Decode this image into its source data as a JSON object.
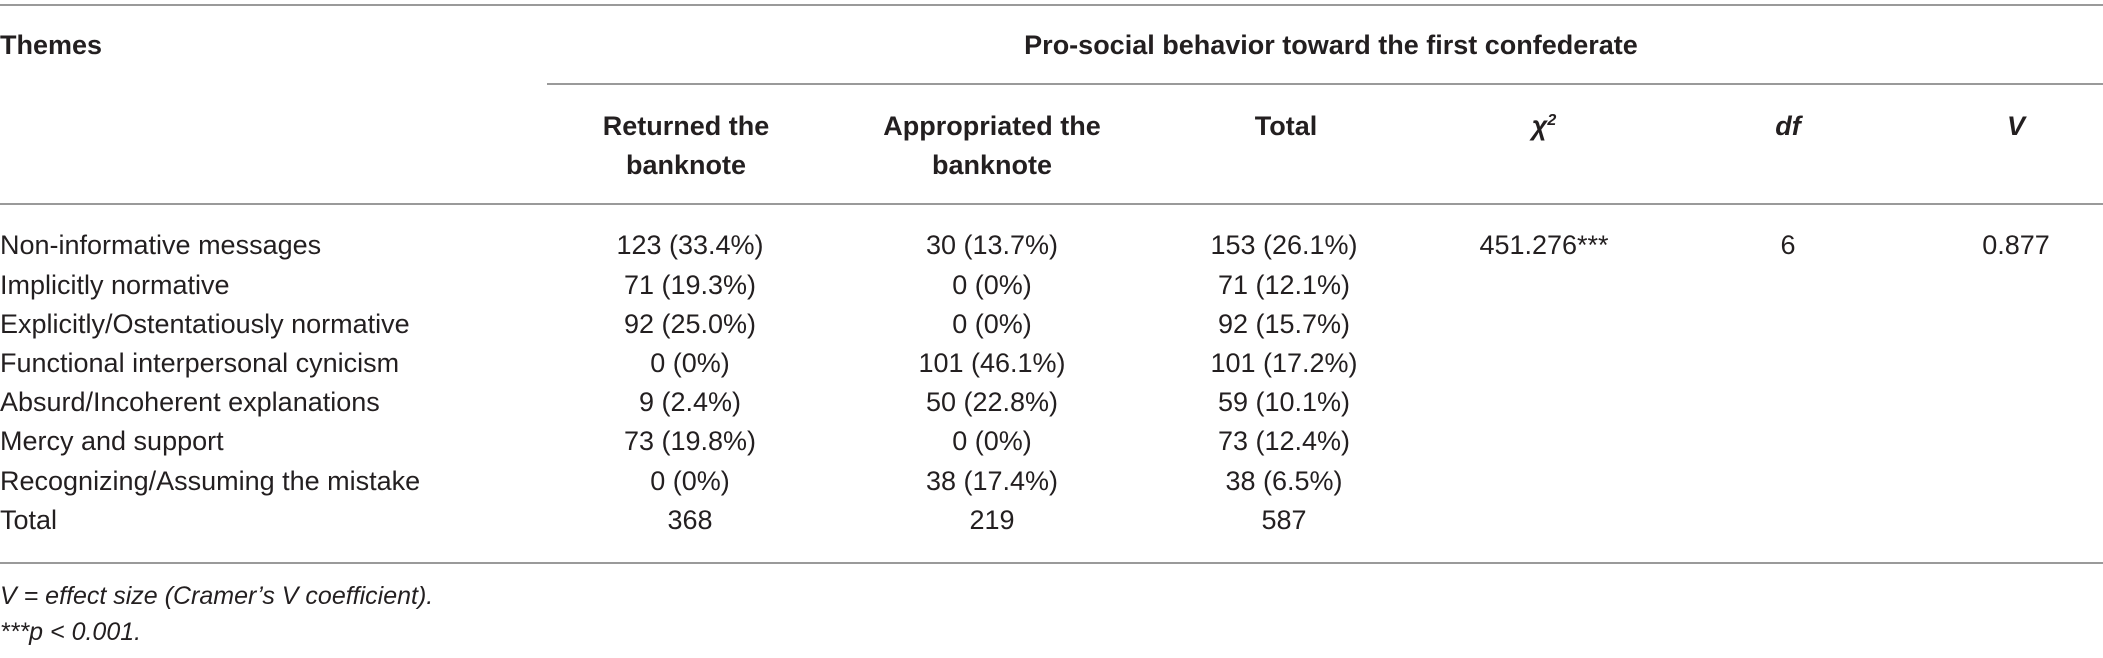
{
  "table": {
    "themes_header": "Themes",
    "group_header": "Pro-social behavior toward the first confederate",
    "columns": {
      "returned_l1": "Returned the",
      "returned_l2": "banknote",
      "appropriated_l1": "Appropriated the",
      "appropriated_l2": "banknote",
      "total": "Total",
      "chi_base": "χ",
      "chi_sup": "2",
      "df": "df",
      "v": "V"
    },
    "rows": [
      {
        "theme": "Non-informative messages",
        "returned": "123 (33.4%)",
        "appropriated": "30 (13.7%)",
        "total": "153 (26.1%)",
        "chi": "451.276***",
        "df": "6",
        "v": "0.877"
      },
      {
        "theme": "Implicitly normative",
        "returned": "71 (19.3%)",
        "appropriated": "0 (0%)",
        "total": "71 (12.1%)"
      },
      {
        "theme": "Explicitly/Ostentatiously normative",
        "returned": "92 (25.0%)",
        "appropriated": "0 (0%)",
        "total": "92 (15.7%)"
      },
      {
        "theme": "Functional interpersonal cynicism",
        "returned": "0 (0%)",
        "appropriated": "101 (46.1%)",
        "total": "101 (17.2%)"
      },
      {
        "theme": "Absurd/Incoherent explanations",
        "returned": "9 (2.4%)",
        "appropriated": "50 (22.8%)",
        "total": "59 (10.1%)"
      },
      {
        "theme": "Mercy and support",
        "returned": "73 (19.8%)",
        "appropriated": "0 (0%)",
        "total": "73 (12.4%)"
      },
      {
        "theme": "Recognizing/Assuming the mistake",
        "returned": "0 (0%)",
        "appropriated": "38 (17.4%)",
        "total": "38 (6.5%)"
      },
      {
        "theme": "Total",
        "returned": "368",
        "appropriated": "219",
        "total": "587"
      }
    ],
    "notes": [
      "V = effect size (Cramer’s V coefficient).",
      "***p < 0.001."
    ]
  }
}
